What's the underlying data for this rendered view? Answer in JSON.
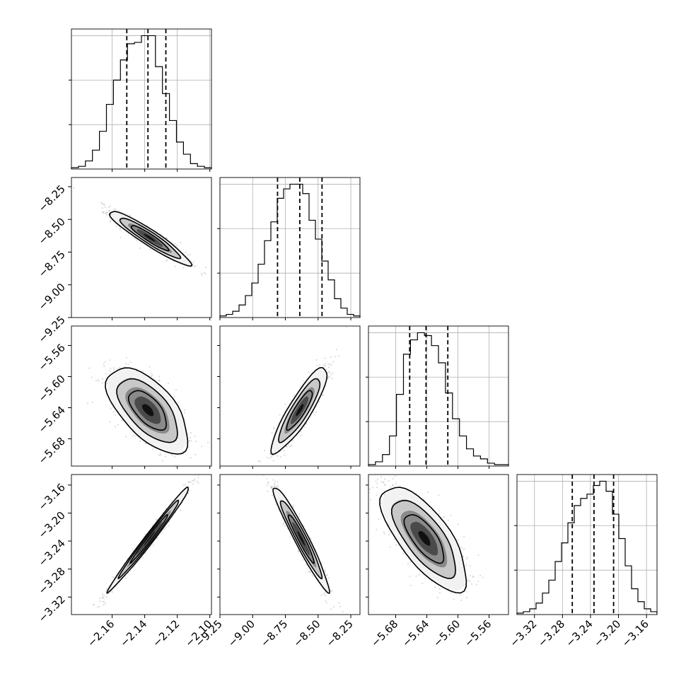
{
  "chart_data": {
    "type": "corner",
    "parameters": [
      {
        "id": "p1",
        "range": [
          -2.185,
          -2.099
        ],
        "ticks": [
          -2.16,
          -2.14,
          -2.12,
          -2.1
        ],
        "tick_labels": [
          "−2.16",
          "−2.14",
          "−2.12",
          "−2.10"
        ],
        "quantiles": [
          -2.151,
          -2.138,
          -2.127
        ],
        "hist": [
          1,
          2,
          6,
          14,
          28,
          48,
          66,
          81,
          93,
          94,
          99,
          99,
          76,
          56,
          36,
          20,
          11,
          4,
          2,
          1
        ]
      },
      {
        "id": "p2",
        "range": [
          -9.25,
          -8.18
        ],
        "ticks": [
          -9.25,
          -9.0,
          -8.75,
          -8.5,
          -8.25
        ],
        "tick_labels": [
          "−9.25",
          "−9.00",
          "−8.75",
          "−8.50",
          "−8.25"
        ],
        "quantiles": [
          -8.81,
          -8.64,
          -8.47
        ],
        "hist": [
          1,
          2,
          4,
          8,
          14,
          22,
          34,
          49,
          61,
          76,
          82,
          85,
          85,
          79,
          62,
          50,
          36,
          24,
          12,
          6,
          2,
          1
        ]
      },
      {
        "id": "p3",
        "range": [
          -5.715,
          -5.535
        ],
        "ticks": [
          -5.68,
          -5.64,
          -5.6,
          -5.56
        ],
        "tick_labels": [
          "−5.68",
          "−5.64",
          "−5.60",
          "−5.56"
        ],
        "quantiles": [
          -5.662,
          -5.641,
          -5.613
        ],
        "hist": [
          1,
          3,
          8,
          21,
          50,
          78,
          88,
          93,
          91,
          84,
          72,
          51,
          33,
          21,
          12,
          7,
          5,
          2,
          1,
          1
        ]
      },
      {
        "id": "p4",
        "range": [
          -3.345,
          -3.145
        ],
        "ticks": [
          -3.32,
          -3.28,
          -3.24,
          -3.2,
          -3.16
        ],
        "tick_labels": [
          "−3.32",
          "−3.28",
          "−3.24",
          "−3.20",
          "−3.16"
        ],
        "quantiles": [
          -3.266,
          -3.235,
          -3.207
        ],
        "hist": [
          1,
          2,
          4,
          8,
          15,
          24,
          37,
          50,
          64,
          76,
          81,
          84,
          90,
          93,
          86,
          70,
          53,
          34,
          18,
          9,
          4,
          2
        ]
      }
    ],
    "pairs": [
      {
        "x": 0,
        "y": 1,
        "center": [
          -2.137,
          -8.64
        ],
        "slope": -8.0,
        "corr": -0.94,
        "sd_x": 0.01,
        "sd_y": 0.083
      },
      {
        "x": 0,
        "y": 2,
        "center": [
          -2.138,
          -5.643
        ],
        "slope": -0.85,
        "corr": -0.62,
        "sd_x": 0.01,
        "sd_y": 0.022
      },
      {
        "x": 1,
        "y": 2,
        "center": [
          -8.64,
          -5.643
        ],
        "slope": 0.18,
        "corr": 0.88,
        "sd_x": 0.085,
        "sd_y": 0.022
      },
      {
        "x": 0,
        "y": 3,
        "center": [
          -2.137,
          -3.236
        ],
        "slope": 3.5,
        "corr": 0.99,
        "sd_x": 0.01,
        "sd_y": 0.03
      },
      {
        "x": 1,
        "y": 3,
        "center": [
          -8.63,
          -3.236
        ],
        "slope": -0.35,
        "corr": -0.96,
        "sd_x": 0.085,
        "sd_y": 0.03
      },
      {
        "x": 2,
        "y": 3,
        "center": [
          -5.643,
          -3.236
        ],
        "slope": -0.9,
        "corr": -0.72,
        "sd_x": 0.022,
        "sd_y": 0.03
      }
    ],
    "grid": true,
    "legend": "none"
  }
}
